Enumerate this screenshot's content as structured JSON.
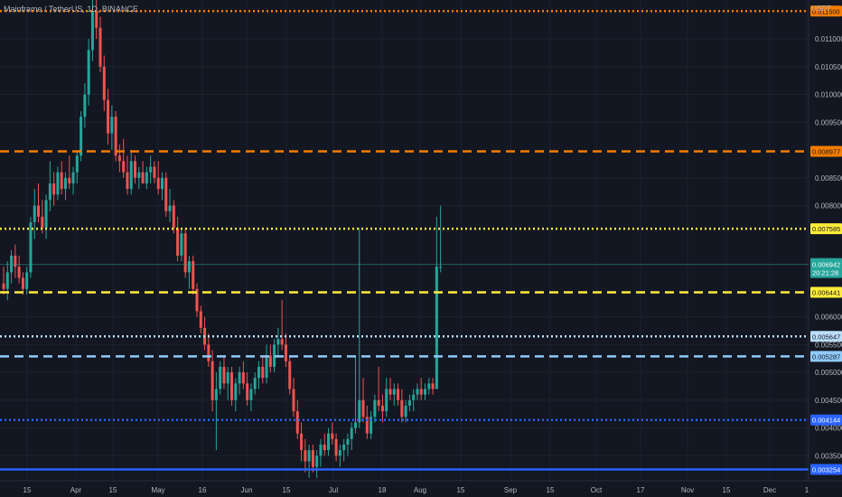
{
  "header": {
    "symbol_title": "Mainframe / TetherUS, 1D, BINANCE",
    "currency": "USDT"
  },
  "chart_data": {
    "type": "candlestick",
    "ylim": [
      0.00305,
      0.0117
    ],
    "y_ticks": [
      "0.011000",
      "0.010500",
      "0.010000",
      "0.009500",
      "0.008500",
      "0.008000",
      "0.006000",
      "0.005500",
      "0.005000",
      "0.004500",
      "0.004000",
      "0.003500"
    ],
    "x_ticks": [
      "15",
      "Apr",
      "15",
      "May",
      "16",
      "Jun",
      "15",
      "Jul",
      "18",
      "Aug",
      "15",
      "Sep",
      "15",
      "Oct",
      "17",
      "Nov",
      "15",
      "Dec",
      "1"
    ],
    "up_color": "#26a69a",
    "down_color": "#ef5350",
    "last_price": {
      "value": "0.006942",
      "countdown": "20:21:28",
      "color": "#26a69a"
    },
    "levels": [
      {
        "value": 0.0115,
        "label": "0.011500",
        "color": "#f57c00",
        "style": "dotted"
      },
      {
        "value": 0.008977,
        "label": "0.008977",
        "color": "#f57c00",
        "style": "dashed"
      },
      {
        "value": 0.007585,
        "label": "0.007585",
        "color": "#ffeb3b",
        "style": "dotted"
      },
      {
        "value": 0.006441,
        "label": "0.006441",
        "color": "#ffeb3b",
        "style": "dashed"
      },
      {
        "value": 0.005647,
        "label": "0.005647",
        "color": "#bbdefb",
        "style": "dotted"
      },
      {
        "value": 0.005287,
        "label": "0.005287",
        "color": "#90caf9",
        "style": "dashed"
      },
      {
        "value": 0.004144,
        "label": "0.004144",
        "color": "#2962ff",
        "style": "dotted"
      },
      {
        "value": 0.003254,
        "label": "0.003254",
        "color": "#2962ff",
        "style": "solid"
      }
    ],
    "candles": [
      [
        0.0066,
        0.0069,
        0.0064,
        0.0065
      ],
      [
        0.0065,
        0.007,
        0.0063,
        0.0068
      ],
      [
        0.0068,
        0.0072,
        0.0066,
        0.0071
      ],
      [
        0.0071,
        0.0073,
        0.0067,
        0.0069
      ],
      [
        0.0069,
        0.0071,
        0.0066,
        0.0067
      ],
      [
        0.0067,
        0.0068,
        0.0064,
        0.0065
      ],
      [
        0.0065,
        0.0069,
        0.0064,
        0.0068
      ],
      [
        0.0068,
        0.0078,
        0.0067,
        0.0077
      ],
      [
        0.0077,
        0.0083,
        0.0074,
        0.008
      ],
      [
        0.008,
        0.0084,
        0.0077,
        0.0078
      ],
      [
        0.0078,
        0.0081,
        0.0075,
        0.0076
      ],
      [
        0.0076,
        0.0082,
        0.0074,
        0.0081
      ],
      [
        0.0081,
        0.0088,
        0.0079,
        0.0084
      ],
      [
        0.0084,
        0.0086,
        0.008,
        0.0082
      ],
      [
        0.0082,
        0.0087,
        0.0081,
        0.0086
      ],
      [
        0.0086,
        0.0088,
        0.0082,
        0.0083
      ],
      [
        0.0083,
        0.0086,
        0.0081,
        0.0085
      ],
      [
        0.0085,
        0.0089,
        0.0083,
        0.0084
      ],
      [
        0.0084,
        0.0087,
        0.0082,
        0.0086
      ],
      [
        0.0086,
        0.009,
        0.0084,
        0.0089
      ],
      [
        0.0089,
        0.0097,
        0.0088,
        0.0096
      ],
      [
        0.0096,
        0.0102,
        0.0094,
        0.01
      ],
      [
        0.01,
        0.011,
        0.0098,
        0.0108
      ],
      [
        0.0108,
        0.0117,
        0.0106,
        0.0115
      ],
      [
        0.0115,
        0.0117,
        0.011,
        0.0112
      ],
      [
        0.0112,
        0.0114,
        0.0104,
        0.0105
      ],
      [
        0.0105,
        0.0107,
        0.0097,
        0.0099
      ],
      [
        0.0099,
        0.0101,
        0.0091,
        0.0093
      ],
      [
        0.0093,
        0.0098,
        0.009,
        0.0096
      ],
      [
        0.0096,
        0.0097,
        0.0088,
        0.0089
      ],
      [
        0.0089,
        0.0091,
        0.0086,
        0.0088
      ],
      [
        0.0088,
        0.0092,
        0.0085,
        0.0086
      ],
      [
        0.0086,
        0.0089,
        0.0082,
        0.0083
      ],
      [
        0.0083,
        0.009,
        0.0082,
        0.0088
      ],
      [
        0.0088,
        0.0089,
        0.0084,
        0.0085
      ],
      [
        0.0085,
        0.0087,
        0.0083,
        0.0086
      ],
      [
        0.0086,
        0.0088,
        0.0084,
        0.0084
      ],
      [
        0.0084,
        0.0087,
        0.0083,
        0.0086
      ],
      [
        0.0086,
        0.0089,
        0.0084,
        0.0087
      ],
      [
        0.0087,
        0.0088,
        0.0084,
        0.0085
      ],
      [
        0.0085,
        0.0088,
        0.0082,
        0.0083
      ],
      [
        0.0083,
        0.0086,
        0.0081,
        0.0085
      ],
      [
        0.0085,
        0.0086,
        0.0078,
        0.0079
      ],
      [
        0.0079,
        0.0083,
        0.0077,
        0.008
      ],
      [
        0.008,
        0.0081,
        0.0075,
        0.0076
      ],
      [
        0.0076,
        0.0078,
        0.007,
        0.0071
      ],
      [
        0.0071,
        0.0076,
        0.007,
        0.0075
      ],
      [
        0.0075,
        0.0076,
        0.0067,
        0.0068
      ],
      [
        0.0068,
        0.0071,
        0.0065,
        0.007
      ],
      [
        0.007,
        0.0071,
        0.0064,
        0.0065
      ],
      [
        0.0065,
        0.0066,
        0.006,
        0.0061
      ],
      [
        0.0061,
        0.0062,
        0.0057,
        0.0058
      ],
      [
        0.0058,
        0.006,
        0.0054,
        0.0055
      ],
      [
        0.0055,
        0.0057,
        0.0051,
        0.0052
      ],
      [
        0.0052,
        0.0054,
        0.0043,
        0.0045
      ],
      [
        0.0045,
        0.005,
        0.0036,
        0.0047
      ],
      [
        0.0047,
        0.0052,
        0.0046,
        0.0051
      ],
      [
        0.0051,
        0.0053,
        0.0047,
        0.0048
      ],
      [
        0.0048,
        0.0051,
        0.0045,
        0.005
      ],
      [
        0.005,
        0.0051,
        0.0044,
        0.0045
      ],
      [
        0.0045,
        0.0049,
        0.0043,
        0.0048
      ],
      [
        0.0048,
        0.0051,
        0.0046,
        0.005
      ],
      [
        0.005,
        0.0052,
        0.0047,
        0.0048
      ],
      [
        0.0048,
        0.005,
        0.0044,
        0.0045
      ],
      [
        0.0045,
        0.0048,
        0.0043,
        0.0047
      ],
      [
        0.0047,
        0.005,
        0.0046,
        0.0049
      ],
      [
        0.0049,
        0.0052,
        0.0047,
        0.0051
      ],
      [
        0.0051,
        0.0053,
        0.0048,
        0.0049
      ],
      [
        0.0049,
        0.0055,
        0.0048,
        0.0053
      ],
      [
        0.0053,
        0.0055,
        0.005,
        0.0051
      ],
      [
        0.0051,
        0.0056,
        0.005,
        0.0055
      ],
      [
        0.0055,
        0.0058,
        0.0053,
        0.0056
      ],
      [
        0.0056,
        0.0063,
        0.0054,
        0.0055
      ],
      [
        0.0055,
        0.0057,
        0.0051,
        0.0052
      ],
      [
        0.0052,
        0.0053,
        0.0046,
        0.0047
      ],
      [
        0.0047,
        0.0049,
        0.0042,
        0.0043
      ],
      [
        0.0043,
        0.0045,
        0.0038,
        0.0039
      ],
      [
        0.0039,
        0.0041,
        0.0034,
        0.0036
      ],
      [
        0.0036,
        0.0038,
        0.0032,
        0.0034
      ],
      [
        0.0034,
        0.0037,
        0.0031,
        0.0036
      ],
      [
        0.0036,
        0.0037,
        0.0032,
        0.0033
      ],
      [
        0.0033,
        0.0036,
        0.0031,
        0.0035
      ],
      [
        0.0035,
        0.0038,
        0.0033,
        0.0037
      ],
      [
        0.0037,
        0.0039,
        0.0035,
        0.0036
      ],
      [
        0.0036,
        0.004,
        0.0035,
        0.0039
      ],
      [
        0.0039,
        0.0041,
        0.0037,
        0.0038
      ],
      [
        0.0038,
        0.0039,
        0.0034,
        0.0035
      ],
      [
        0.0035,
        0.0037,
        0.0033,
        0.0036
      ],
      [
        0.0036,
        0.0038,
        0.0034,
        0.0037
      ],
      [
        0.0037,
        0.0039,
        0.0035,
        0.0038
      ],
      [
        0.0038,
        0.0041,
        0.0036,
        0.004
      ],
      [
        0.004,
        0.0053,
        0.0039,
        0.0041
      ],
      [
        0.0041,
        0.0076,
        0.004,
        0.0045
      ],
      [
        0.0045,
        0.0049,
        0.0041,
        0.0042
      ],
      [
        0.0042,
        0.0044,
        0.0038,
        0.0039
      ],
      [
        0.0039,
        0.0043,
        0.0038,
        0.0042
      ],
      [
        0.0042,
        0.0046,
        0.0041,
        0.0045
      ],
      [
        0.0045,
        0.0051,
        0.0043,
        0.0044
      ],
      [
        0.0044,
        0.0046,
        0.0041,
        0.0043
      ],
      [
        0.0043,
        0.0049,
        0.0042,
        0.0047
      ],
      [
        0.0047,
        0.0049,
        0.0045,
        0.0046
      ],
      [
        0.0046,
        0.0048,
        0.0044,
        0.0047
      ],
      [
        0.0047,
        0.0048,
        0.0044,
        0.0045
      ],
      [
        0.0045,
        0.0047,
        0.0041,
        0.0042
      ],
      [
        0.0042,
        0.0045,
        0.0041,
        0.0044
      ],
      [
        0.0044,
        0.0046,
        0.0043,
        0.0045
      ],
      [
        0.0045,
        0.0047,
        0.0043,
        0.0046
      ],
      [
        0.0046,
        0.0048,
        0.0045,
        0.0047
      ],
      [
        0.0047,
        0.0049,
        0.0045,
        0.0046
      ],
      [
        0.0046,
        0.0048,
        0.0045,
        0.0047
      ],
      [
        0.0047,
        0.0049,
        0.0046,
        0.0048
      ],
      [
        0.0048,
        0.0049,
        0.0046,
        0.0047
      ],
      [
        0.0047,
        0.0078,
        0.0047,
        0.0069
      ],
      [
        0.0069,
        0.008,
        0.0068,
        0.0069
      ]
    ]
  }
}
